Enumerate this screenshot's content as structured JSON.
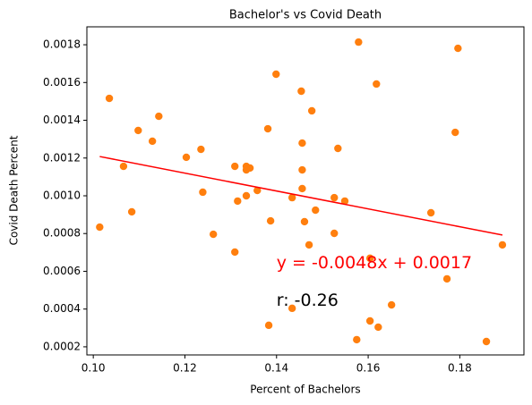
{
  "chart_data": {
    "type": "scatter",
    "title": "Bachelor's vs Covid Death",
    "x_label": "Percent of Bachelors",
    "y_label": "Covid Death Percent",
    "color": "#ff7f0e",
    "x": [
      0.1014,
      0.1035,
      0.1066,
      0.1084,
      0.1098,
      0.1129,
      0.1143,
      0.1203,
      0.1235,
      0.1239,
      0.1262,
      0.1309,
      0.1309,
      0.1315,
      0.1334,
      0.1334,
      0.1342,
      0.1334,
      0.1358,
      0.1381,
      0.1387,
      0.1383,
      0.1399,
      0.1434,
      0.1434,
      0.1454,
      0.1456,
      0.1456,
      0.1456,
      0.1461,
      0.1471,
      0.1477,
      0.1485,
      0.1534,
      0.1526,
      0.1526,
      0.1549,
      0.1575,
      0.1579,
      0.1604,
      0.1604,
      0.1618,
      0.1622,
      0.1651,
      0.1737,
      0.1772,
      0.179,
      0.1796,
      0.1858,
      0.1893
    ],
    "values": [
      0.000834,
      0.001516,
      0.001156,
      0.000915,
      0.001346,
      0.001289,
      0.001421,
      0.001204,
      0.001246,
      0.001019,
      0.000796,
      0.000702,
      0.001156,
      0.000972,
      0.001156,
      0.001137,
      0.001147,
      0.001,
      0.001028,
      0.001355,
      0.000867,
      0.000314,
      0.001644,
      0.00099,
      0.000404,
      0.001554,
      0.001279,
      0.001137,
      0.001038,
      0.000863,
      0.00074,
      0.00145,
      0.000924,
      0.001251,
      0.00099,
      0.000801,
      0.000972,
      0.000238,
      0.001814,
      0.000337,
      0.000669,
      0.001592,
      0.000304,
      0.000422,
      0.00091,
      0.00056,
      0.001336,
      0.001781,
      0.000228,
      0.00074
    ],
    "fit_line": {
      "color": "#ff0000",
      "x": [
        0.1014,
        0.1893
      ],
      "values": [
        0.001208,
        0.000792
      ]
    },
    "annotations": [
      {
        "text": "y = -0.0048x + 0.0017",
        "x": 0.14,
        "y": 0.0006,
        "color": "#ff0000"
      },
      {
        "text": "r: -0.26",
        "x": 0.14,
        "y": 0.0004,
        "color": "#000000"
      }
    ],
    "xlim": [
      0.0986,
      0.194
    ],
    "ylim": [
      0.000157,
      0.001895
    ],
    "xticks": [
      {
        "value": 0.1,
        "label": "0.10"
      },
      0.12,
      0.14,
      0.16,
      0.18
    ],
    "yticks": [
      0.0002,
      0.0004,
      0.0006,
      0.0008,
      {
        "value": 0.001,
        "label": "0.0010"
      },
      0.0012,
      0.0014,
      0.0016,
      0.0018
    ],
    "grid": false
  }
}
